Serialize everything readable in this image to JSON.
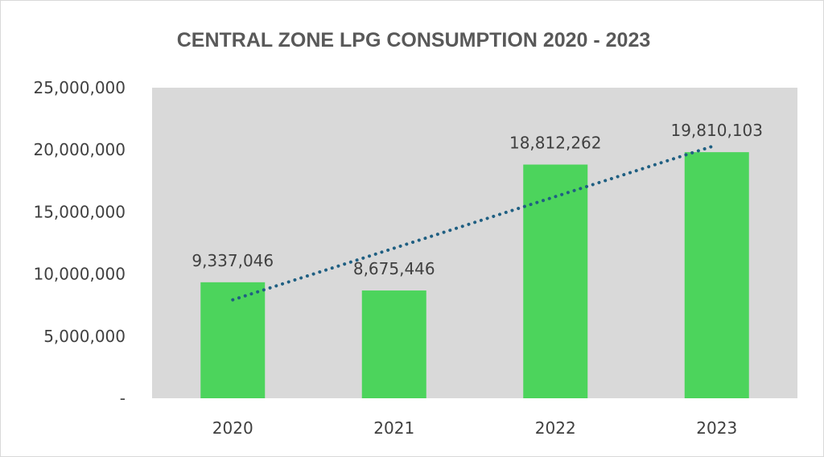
{
  "chart_data": {
    "type": "bar",
    "title": "CENTRAL ZONE LPG CONSUMPTION 2020 - 2023",
    "categories": [
      "2020",
      "2021",
      "2022",
      "2023"
    ],
    "values": [
      9337046,
      8675446,
      18812262,
      19810103
    ],
    "value_labels": [
      "9,337,046",
      "8,675,446",
      "18,812,262",
      "19,810,103"
    ],
    "ylim": [
      0,
      25000000
    ],
    "yticks": [
      0,
      5000000,
      10000000,
      15000000,
      20000000,
      25000000
    ],
    "ytick_labels": [
      "-",
      "5,000,000",
      "10,000,000",
      "15,000,000",
      "20,000,000",
      "25,000,000"
    ],
    "xlabel": "",
    "ylabel": "",
    "grid": false,
    "trendline": {
      "type": "linear",
      "style": "dotted"
    },
    "colors": {
      "bar": "#4cd45c",
      "plot_bg": "#d9d9d9",
      "trendline": "#1f5f82"
    }
  }
}
